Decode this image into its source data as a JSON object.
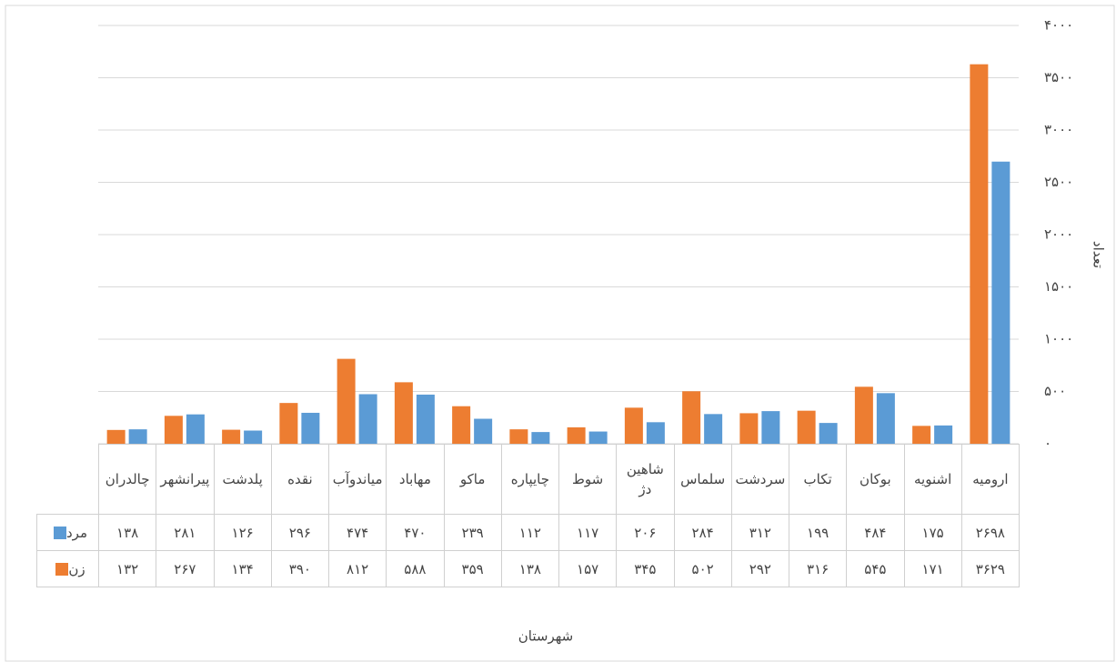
{
  "chart_data": {
    "type": "bar",
    "categories": [
      "ارومیه",
      "اشنویه",
      "بوکان",
      "تکاب",
      "سردشت",
      "سلماس",
      "شاهین دژ",
      "شوط",
      "چایپاره",
      "ماکو",
      "مهاباد",
      "میاندوآب",
      "نقده",
      "پلدشت",
      "پیرانشهر",
      "چالدران"
    ],
    "series": [
      {
        "name": "مرد",
        "color": "#5b9bd5",
        "values": [
          2698,
          175,
          484,
          199,
          312,
          284,
          206,
          117,
          112,
          239,
          470,
          474,
          296,
          126,
          281,
          138
        ],
        "value_labels": [
          "۲۶۹۸",
          "۱۷۵",
          "۴۸۴",
          "۱۹۹",
          "۳۱۲",
          "۲۸۴",
          "۲۰۶",
          "۱۱۷",
          "۱۱۲",
          "۲۳۹",
          "۴۷۰",
          "۴۷۴",
          "۲۹۶",
          "۱۲۶",
          "۲۸۱",
          "۱۳۸"
        ]
      },
      {
        "name": "زن",
        "color": "#ed7d31",
        "values": [
          3629,
          171,
          545,
          316,
          292,
          502,
          345,
          157,
          138,
          359,
          588,
          812,
          390,
          134,
          267,
          132
        ],
        "value_labels": [
          "۳۶۲۹",
          "۱۷۱",
          "۵۴۵",
          "۳۱۶",
          "۲۹۲",
          "۵۰۲",
          "۳۴۵",
          "۱۵۷",
          "۱۳۸",
          "۳۵۹",
          "۵۸۸",
          "۸۱۲",
          "۳۹۰",
          "۱۳۴",
          "۲۶۷",
          "۱۳۲"
        ]
      }
    ],
    "ylim": [
      0,
      4000
    ],
    "yticks": [
      {
        "value": 0,
        "label": "۰"
      },
      {
        "value": 500,
        "label": "۵۰۰"
      },
      {
        "value": 1000,
        "label": "۱۰۰۰"
      },
      {
        "value": 1500,
        "label": "۱۵۰۰"
      },
      {
        "value": 2000,
        "label": "۲۰۰۰"
      },
      {
        "value": 2500,
        "label": "۲۵۰۰"
      },
      {
        "value": 3000,
        "label": "۳۰۰۰"
      },
      {
        "value": 3500,
        "label": "۳۵۰۰"
      },
      {
        "value": 4000,
        "label": "۴۰۰۰"
      }
    ],
    "y_axis_label": "تعداد",
    "x_axis_label": "شهرستان",
    "y_axis_side": "right",
    "grid": true
  }
}
